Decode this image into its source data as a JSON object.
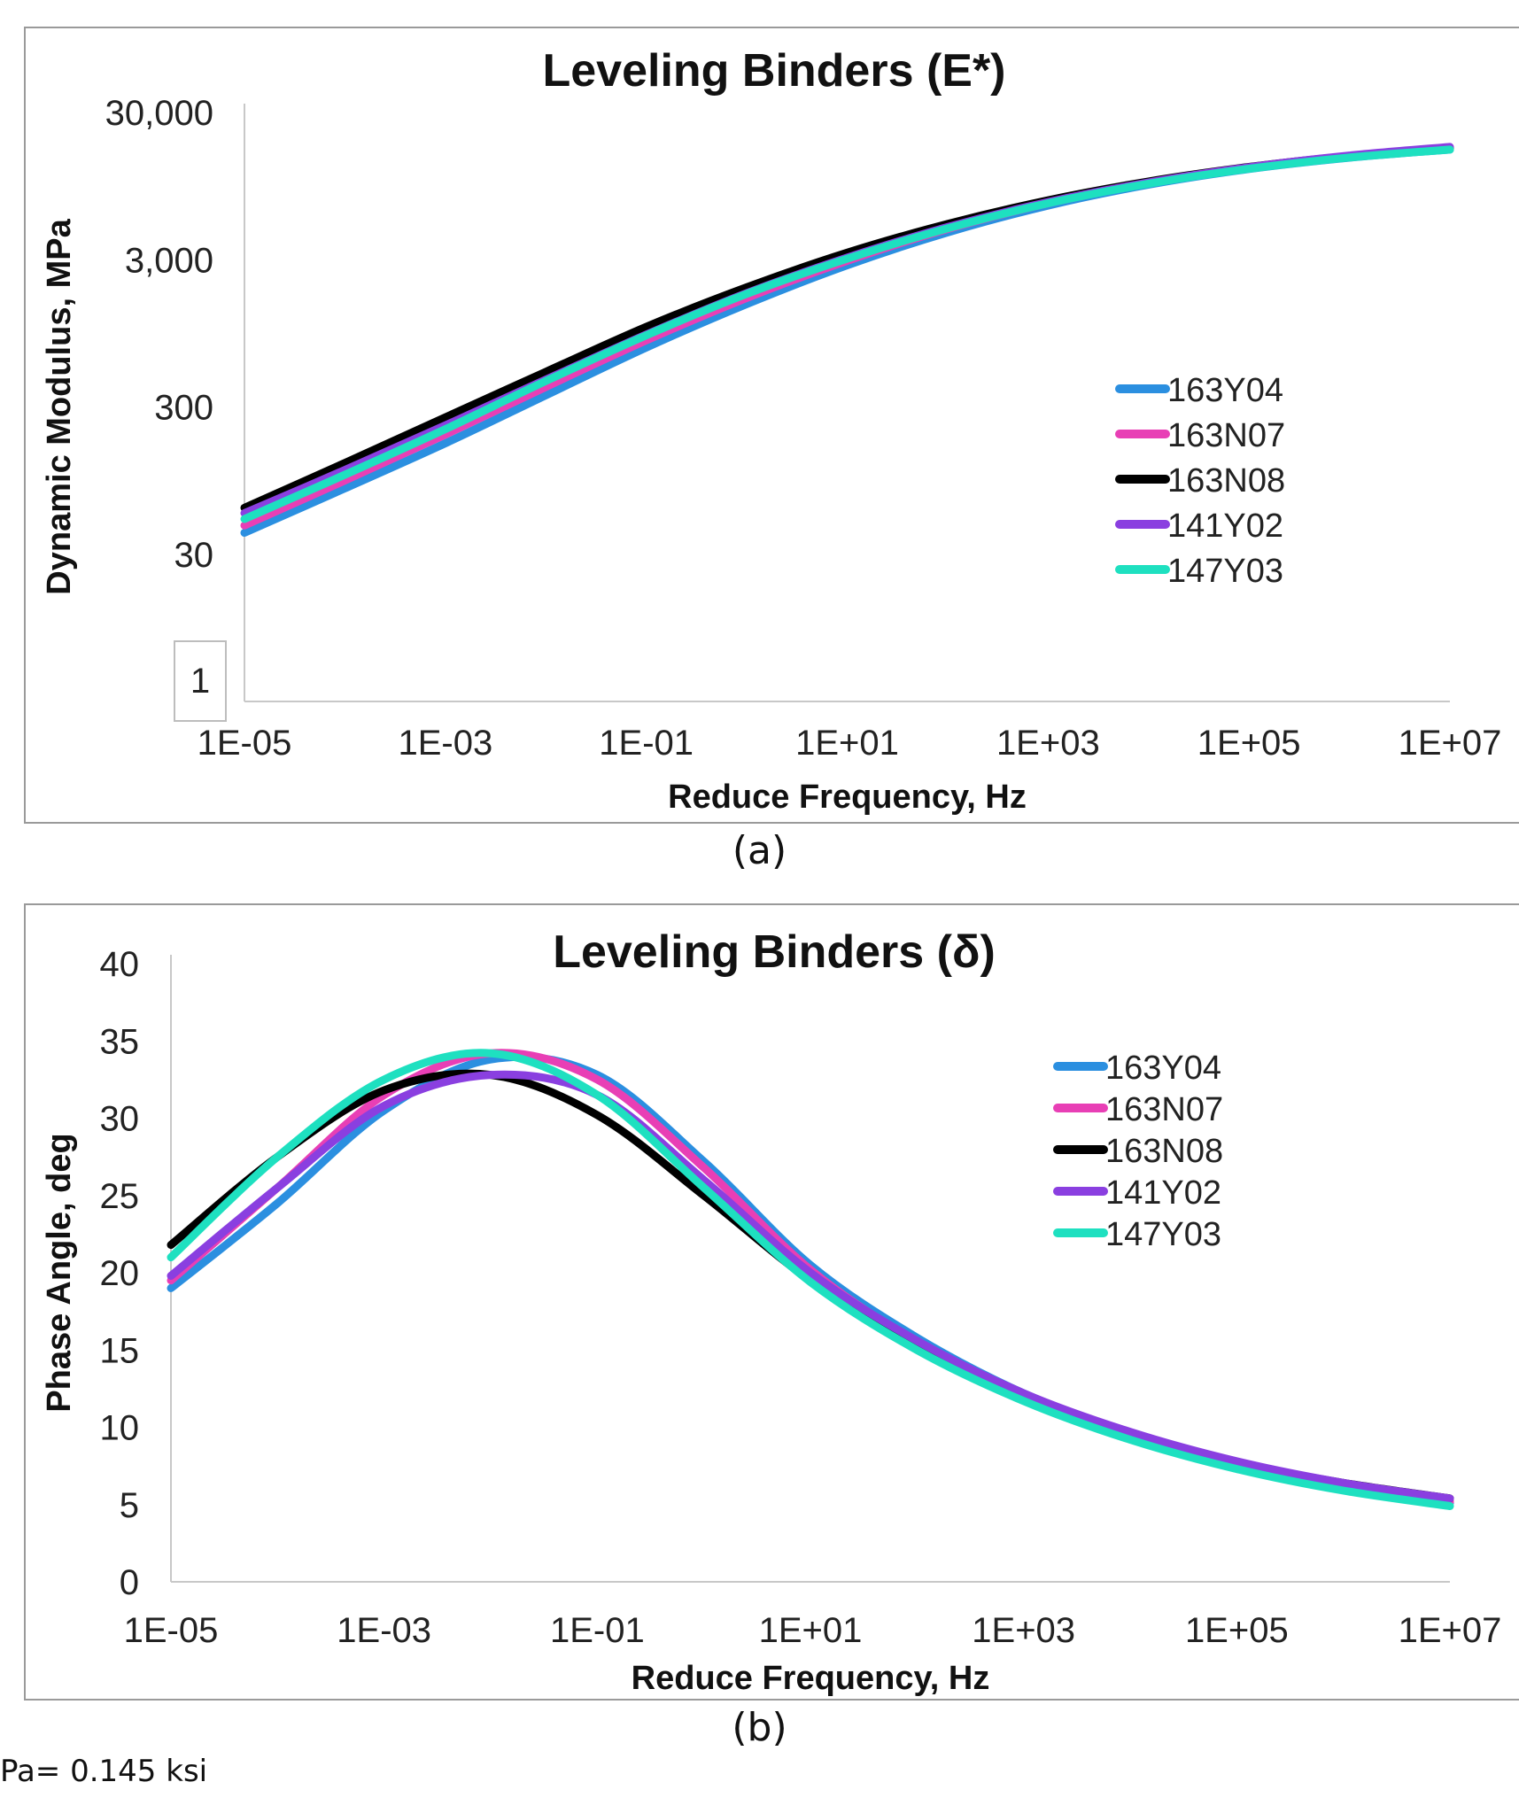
{
  "chart_data": [
    {
      "type": "line",
      "title": "Leveling Binders (E*)",
      "xlabel": "Reduce Frequency, Hz",
      "ylabel": "Dynamic Modulus, MPa",
      "xscale": "log",
      "yscale": "log",
      "xlim": [
        1e-05,
        10000000.0
      ],
      "ylim": [
        3,
        30000
      ],
      "xticks": [
        "1E-05",
        "1E-03",
        "1E-01",
        "1E+01",
        "1E+03",
        "1E+05",
        "1E+07"
      ],
      "yticks": [
        "30",
        "300",
        "3,000",
        "30,000"
      ],
      "annotation": "1",
      "legend": "right",
      "x": [
        1e-05,
        0.0001,
        0.001,
        0.01,
        0.1,
        1.0,
        10.0,
        100.0,
        1000.0,
        10000.0,
        100000.0,
        1000000.0,
        10000000.0
      ],
      "series": [
        {
          "name": "163Y04",
          "color": "#2b8fe0",
          "values": [
            42,
            84,
            170,
            360,
            760,
            1500,
            2750,
            4600,
            7000,
            9700,
            12400,
            14800,
            16800
          ]
        },
        {
          "name": "163N07",
          "color": "#e83fb5",
          "values": [
            47,
            95,
            195,
            410,
            850,
            1650,
            2950,
            4850,
            7250,
            9900,
            12600,
            15000,
            17000
          ]
        },
        {
          "name": "163N08",
          "color": "#000000",
          "values": [
            62,
            125,
            255,
            520,
            1050,
            1950,
            3350,
            5250,
            7600,
            10200,
            12800,
            15200,
            17200
          ]
        },
        {
          "name": "141Y02",
          "color": "#8a3fe0",
          "values": [
            57,
            112,
            225,
            460,
            930,
            1780,
            3100,
            5000,
            7400,
            10050,
            12750,
            15300,
            17500
          ]
        },
        {
          "name": "147Y03",
          "color": "#1ee0c0",
          "values": [
            52,
            104,
            212,
            450,
            920,
            1760,
            3050,
            4900,
            7250,
            9850,
            12450,
            14850,
            16800
          ]
        }
      ]
    },
    {
      "type": "line",
      "title": "Leveling Binders (δ)",
      "xlabel": "Reduce Frequency, Hz",
      "ylabel": "Phase Angle, deg",
      "xscale": "log",
      "xlim": [
        1e-05,
        10000000.0
      ],
      "ylim": [
        0,
        40
      ],
      "xticks": [
        "1E-05",
        "1E-03",
        "1E-01",
        "1E+01",
        "1E+03",
        "1E+05",
        "1E+07"
      ],
      "yticks": [
        "0",
        "5",
        "10",
        "15",
        "20",
        "25",
        "30",
        "35",
        "40"
      ],
      "legend": "top-right",
      "x": [
        1e-05,
        0.0001,
        0.001,
        0.01,
        0.1,
        1.0,
        10.0,
        100.0,
        1000.0,
        10000.0,
        100000.0,
        1000000.0,
        10000000.0
      ],
      "series": [
        {
          "name": "163Y04",
          "color": "#2b8fe0",
          "values": [
            19.0,
            24.5,
            30.5,
            33.8,
            32.8,
            27.2,
            20.5,
            15.8,
            12.2,
            9.6,
            7.6,
            6.2,
            5.1
          ]
        },
        {
          "name": "163N07",
          "color": "#e83fb5",
          "values": [
            19.5,
            25.5,
            31.5,
            34.2,
            32.5,
            26.8,
            20.2,
            15.5,
            12.1,
            9.5,
            7.6,
            6.2,
            5.2
          ]
        },
        {
          "name": "163N08",
          "color": "#000000",
          "values": [
            21.8,
            27.5,
            31.8,
            32.8,
            30.2,
            25.0,
            19.5,
            15.3,
            12.0,
            9.6,
            7.7,
            6.4,
            5.4
          ]
        },
        {
          "name": "141Y02",
          "color": "#8a3fe0",
          "values": [
            19.8,
            25.5,
            30.8,
            32.8,
            31.5,
            26.0,
            20.0,
            15.6,
            12.2,
            9.7,
            7.8,
            6.4,
            5.4
          ]
        },
        {
          "name": "147Y03",
          "color": "#1ee0c0",
          "values": [
            21.0,
            27.5,
            32.5,
            34.2,
            31.5,
            25.5,
            19.4,
            15.0,
            11.7,
            9.2,
            7.3,
            5.9,
            4.9
          ]
        }
      ]
    }
  ],
  "captions": {
    "a": "(a)",
    "b": "(b)"
  },
  "footnote": "Pa= 0.145 ksi"
}
